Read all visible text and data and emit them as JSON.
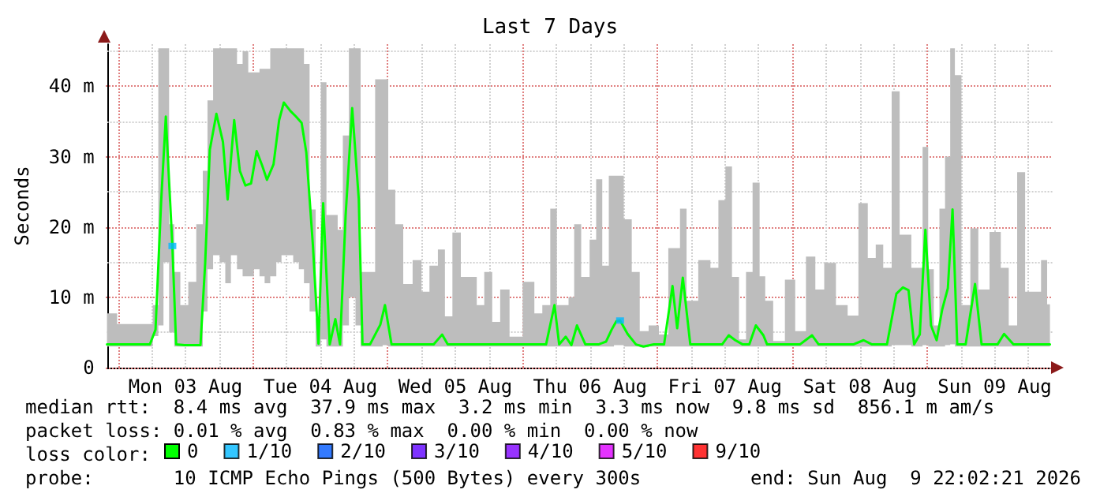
{
  "chart_data": {
    "type": "line",
    "title": "Last 7 Days",
    "ylabel": "Seconds",
    "xlim": [
      "2026-08-02T22:02",
      "2026-08-09T22:02"
    ],
    "xticks": [
      {
        "value": "2026-08-03T00:00",
        "label": null
      },
      {
        "value": "2026-08-03T06:00",
        "label": null
      },
      {
        "value": "2026-08-03T12:00",
        "label": "Mon 03 Aug"
      },
      {
        "value": "2026-08-03T18:00",
        "label": null
      },
      {
        "value": "2026-08-04T00:00",
        "label": null
      },
      {
        "value": "2026-08-04T06:00",
        "label": null
      },
      {
        "value": "2026-08-04T12:00",
        "label": "Tue 04 Aug"
      },
      {
        "value": "2026-08-04T18:00",
        "label": null
      },
      {
        "value": "2026-08-05T00:00",
        "label": null
      },
      {
        "value": "2026-08-05T06:00",
        "label": null
      },
      {
        "value": "2026-08-05T12:00",
        "label": "Wed 05 Aug"
      },
      {
        "value": "2026-08-05T18:00",
        "label": null
      },
      {
        "value": "2026-08-06T00:00",
        "label": null
      },
      {
        "value": "2026-08-06T06:00",
        "label": null
      },
      {
        "value": "2026-08-06T12:00",
        "label": "Thu 06 Aug"
      },
      {
        "value": "2026-08-06T18:00",
        "label": null
      },
      {
        "value": "2026-08-07T00:00",
        "label": null
      },
      {
        "value": "2026-08-07T06:00",
        "label": null
      },
      {
        "value": "2026-08-07T12:00",
        "label": "Fri 07 Aug"
      },
      {
        "value": "2026-08-07T18:00",
        "label": null
      },
      {
        "value": "2026-08-08T00:00",
        "label": null
      },
      {
        "value": "2026-08-08T06:00",
        "label": null
      },
      {
        "value": "2026-08-08T12:00",
        "label": "Sat 08 Aug"
      },
      {
        "value": "2026-08-08T18:00",
        "label": null
      },
      {
        "value": "2026-08-09T00:00",
        "label": null
      },
      {
        "value": "2026-08-09T06:00",
        "label": null
      },
      {
        "value": "2026-08-09T12:00",
        "label": "Sun 09 Aug"
      },
      {
        "value": "2026-08-09T18:00",
        "label": null
      }
    ],
    "ylim": [
      0,
      46
    ],
    "yticks": [
      0,
      {
        "value": 5,
        "label": null
      },
      {
        "value": 10,
        "label": "10 m"
      },
      {
        "value": 15,
        "label": null
      },
      {
        "value": 20,
        "label": "20 m"
      },
      {
        "value": 25,
        "label": null
      },
      {
        "value": 30,
        "label": "30 m"
      },
      {
        "value": 35,
        "label": null
      },
      {
        "value": 40,
        "label": "40 m"
      },
      {
        "value": 45,
        "label": null
      }
    ],
    "grid": true,
    "legend": "bottom",
    "marker": "none",
    "annotations": [
      "median rtt:  8.4 ms avg  37.9 ms max  3.2 ms min  3.3 ms now  9.8 ms sd  856.1 m am/s",
      "packet loss: 0.01 % avg  0.83 % max  0.00 % min  0.00 % now",
      "loss color:",
      "probe:       10 ICMP Echo Pings (500 Bytes) every 300s",
      "end: Sun Aug  9 22:02:21 2026"
    ],
    "series": [
      {
        "name": "0",
        "color": "#00ff00",
        "x": [
          "2026-08-02T22:02",
          "2026-08-02T23:10",
          "2026-08-03T00:30",
          "2026-08-03T03:50",
          "2026-08-03T05:40",
          "2026-08-03T06:40",
          "2026-08-03T07:40",
          "2026-08-03T08:30",
          "2026-08-03T09:40",
          "2026-08-03T10:20",
          "2026-08-03T11:50",
          "2026-08-03T13:10",
          "2026-08-03T14:40",
          "2026-08-03T15:30",
          "2026-08-03T16:20",
          "2026-08-03T17:30",
          "2026-08-03T18:40",
          "2026-08-03T19:30",
          "2026-08-03T20:40",
          "2026-08-03T21:40",
          "2026-08-03T22:40",
          "2026-08-03T23:40",
          "2026-08-04T00:40",
          "2026-08-04T01:40",
          "2026-08-04T02:30",
          "2026-08-04T03:40",
          "2026-08-04T04:40",
          "2026-08-04T05:30",
          "2026-08-04T06:40",
          "2026-08-04T07:40",
          "2026-08-04T08:40",
          "2026-08-04T09:30",
          "2026-08-04T10:40",
          "2026-08-04T11:40",
          "2026-08-04T12:30",
          "2026-08-04T13:40",
          "2026-08-04T14:40",
          "2026-08-04T15:30",
          "2026-08-04T16:30",
          "2026-08-04T17:40",
          "2026-08-04T18:50",
          "2026-08-04T19:30",
          "2026-08-04T20:50",
          "2026-08-04T22:40",
          "2026-08-04T23:30",
          "2026-08-05T00:40",
          "2026-08-05T02:00",
          "2026-08-05T03:30",
          "2026-08-05T05:20",
          "2026-08-05T06:40",
          "2026-08-05T08:10",
          "2026-08-05T09:40",
          "2026-08-05T10:40",
          "2026-08-05T12:20",
          "2026-08-05T13:40",
          "2026-08-05T15:10",
          "2026-08-05T16:30",
          "2026-08-05T17:50",
          "2026-08-05T19:20",
          "2026-08-05T20:40",
          "2026-08-05T22:40",
          "2026-08-06T01:20",
          "2026-08-06T02:50",
          "2026-08-06T04:10",
          "2026-08-06T05:40",
          "2026-08-06T06:30",
          "2026-08-06T07:40",
          "2026-08-06T08:40",
          "2026-08-06T09:40",
          "2026-08-06T11:10",
          "2026-08-06T12:40",
          "2026-08-06T13:30",
          "2026-08-06T14:50",
          "2026-08-06T15:50",
          "2026-08-06T16:40",
          "2026-08-06T17:20",
          "2026-08-06T18:40",
          "2026-08-06T20:10",
          "2026-08-06T21:30",
          "2026-08-06T23:20",
          "2026-08-07T01:10",
          "2026-08-07T02:40",
          "2026-08-07T03:30",
          "2026-08-07T04:30",
          "2026-08-07T05:50",
          "2026-08-07T08:40",
          "2026-08-07T10:10",
          "2026-08-07T11:30",
          "2026-08-07T12:40",
          "2026-08-07T13:50",
          "2026-08-07T15:10",
          "2026-08-07T16:20",
          "2026-08-07T17:30",
          "2026-08-07T18:50",
          "2026-08-07T19:30",
          "2026-08-07T21:40",
          "2026-08-07T23:40",
          "2026-08-08T01:20",
          "2026-08-08T03:30",
          "2026-08-08T04:40",
          "2026-08-08T06:40",
          "2026-08-08T08:50",
          "2026-08-08T10:50",
          "2026-08-08T12:40",
          "2026-08-08T14:10",
          "2026-08-08T15:30",
          "2026-08-08T16:50",
          "2026-08-08T18:30",
          "2026-08-08T19:40",
          "2026-08-08T20:40",
          "2026-08-08T21:40",
          "2026-08-08T22:40",
          "2026-08-08T23:40",
          "2026-08-09T00:40",
          "2026-08-09T01:40",
          "2026-08-09T02:40",
          "2026-08-09T03:40",
          "2026-08-09T04:30",
          "2026-08-09T05:20",
          "2026-08-09T06:50",
          "2026-08-09T08:30",
          "2026-08-09T09:40",
          "2026-08-09T12:30",
          "2026-08-09T13:40",
          "2026-08-09T15:20",
          "2026-08-09T16:40",
          "2026-08-09T18:10",
          "2026-08-09T19:40",
          "2026-08-09T20:50",
          "2026-08-09T21:50"
        ],
        "values": [
          3.3,
          3.3,
          3.3,
          3.3,
          3.3,
          5.4,
          23.6,
          35.7,
          17.3,
          3.3,
          3.2,
          3.2,
          3.2,
          14.8,
          31,
          36.1,
          32.1,
          23.9,
          35.2,
          28,
          25.9,
          26.2,
          30.8,
          28.7,
          26.7,
          28.9,
          35.2,
          37.7,
          36.5,
          35.7,
          34.8,
          30.6,
          17.5,
          3.4,
          23.4,
          3.3,
          6.9,
          3.3,
          21.7,
          36.9,
          24,
          3.3,
          3.3,
          6.1,
          8.9,
          3.3,
          3.3,
          3.3,
          3.3,
          3.3,
          3.3,
          4.7,
          3.3,
          3.3,
          3.3,
          3.3,
          3.3,
          3.3,
          3.3,
          3.3,
          3.3,
          3.3,
          3.3,
          3.3,
          8.9,
          3.3,
          4.4,
          3.2,
          6,
          3.3,
          3.3,
          3.3,
          3.7,
          5.4,
          6.6,
          6.7,
          4.8,
          3.3,
          3,
          3.3,
          3.3,
          11.6,
          5.6,
          12.8,
          3.3,
          3.3,
          3.3,
          3.3,
          4.6,
          3.9,
          3.3,
          3.3,
          6,
          4.6,
          3.3,
          3.3,
          3.3,
          3.3,
          4.6,
          3.3,
          3.3,
          3.3,
          3.3,
          3.9,
          3.3,
          3.3,
          3.3,
          10.5,
          11.4,
          11,
          3.3,
          4.7,
          19.6,
          6,
          3.9,
          8.3,
          11.3,
          22.5,
          3.3,
          3.3,
          11.9,
          3.3,
          3.3,
          4.8,
          3.3,
          3.3,
          3.3,
          3.3,
          3.3,
          3.3
        ],
        "lower": [
          3,
          3,
          3,
          3,
          3,
          4.5,
          6,
          15,
          5,
          3,
          3,
          3,
          3,
          8,
          14,
          16,
          15,
          12,
          16,
          14,
          13,
          13,
          14,
          13,
          12,
          13,
          15,
          16,
          16,
          15,
          14,
          12,
          8,
          3,
          4,
          3,
          3,
          3,
          6,
          10,
          6,
          3,
          3,
          3,
          3.2,
          3,
          3,
          3,
          3,
          3,
          3,
          3,
          3,
          3,
          3,
          3,
          3,
          3,
          3,
          3,
          3,
          3,
          3,
          3,
          3,
          3,
          3,
          3,
          3,
          3,
          3,
          3,
          3,
          3,
          3.2,
          3.2,
          3,
          3,
          2.9,
          3,
          3,
          3,
          3,
          3,
          3,
          3,
          3,
          3,
          3,
          3,
          3,
          3,
          3,
          3,
          3,
          3,
          3,
          3,
          3,
          3,
          3,
          3,
          3,
          3,
          3,
          3,
          3,
          3.2,
          3.2,
          3.2,
          3,
          3,
          3.2,
          3,
          3,
          3,
          3.2,
          3.3,
          3,
          3,
          3,
          3,
          3,
          3,
          3,
          3,
          3,
          3,
          3,
          3
        ],
        "upper": [
          7.7,
          7.7,
          6.2,
          6.2,
          6.2,
          8.9,
          45.4,
          45.4,
          20.4,
          13.6,
          8.9,
          12.2,
          20.4,
          28,
          38,
          45.4,
          45.4,
          45.4,
          45.4,
          43.2,
          45,
          42,
          42,
          42.5,
          42.5,
          45.4,
          45.4,
          45.4,
          45.4,
          45.4,
          45.4,
          43.2,
          22.5,
          7,
          40.6,
          21.7,
          21.7,
          19.6,
          33,
          45.4,
          45.4,
          13.6,
          13.6,
          41,
          41,
          25.3,
          20.4,
          11.9,
          15.3,
          10.8,
          14.5,
          16.8,
          7.3,
          19.2,
          12.9,
          12.9,
          8.9,
          13.6,
          6.5,
          11.1,
          4.4,
          12.2,
          7.7,
          8.9,
          22.6,
          8.9,
          8.9,
          10,
          20.4,
          12.9,
          18.2,
          26.8,
          14.5,
          27.3,
          27.3,
          27.3,
          21.1,
          13.6,
          5.2,
          6,
          4.7,
          17,
          17,
          22.6,
          9.5,
          15.3,
          14.2,
          23.8,
          28.6,
          12.9,
          4,
          13.6,
          26.3,
          13,
          9.5,
          3.8,
          12.5,
          5.2,
          15.8,
          11.1,
          14.9,
          8.9,
          7.4,
          23.4,
          15.6,
          17.5,
          14.2,
          39.3,
          18.9,
          18.9,
          14.2,
          14.2,
          31.4,
          14,
          6,
          22.6,
          30,
          45.4,
          41.6,
          8.9,
          19.8,
          11.1,
          19.3,
          14.2,
          6,
          27.8,
          10.8,
          10.8,
          15.3,
          9
        ]
      },
      {
        "name": "1/10",
        "color": "#00b8ff",
        "type": "scatter",
        "marker": "square",
        "x": [
          "2026-08-03T09:40",
          "2026-08-06T17:20"
        ],
        "values": [
          17.3,
          6.7
        ]
      },
      {
        "name": "2/10",
        "color": "#0059ff",
        "type": "scatter",
        "marker": "square"
      },
      {
        "name": "3/10",
        "color": "#5e00ff",
        "type": "scatter",
        "marker": "square"
      },
      {
        "name": "4/10",
        "color": "#7e00ff",
        "type": "scatter",
        "marker": "square"
      },
      {
        "name": "5/10",
        "color": "#dd00ff",
        "type": "scatter",
        "marker": "square"
      },
      {
        "name": "9/10",
        "color": "#ff0000",
        "type": "scatter",
        "marker": "square"
      }
    ]
  }
}
